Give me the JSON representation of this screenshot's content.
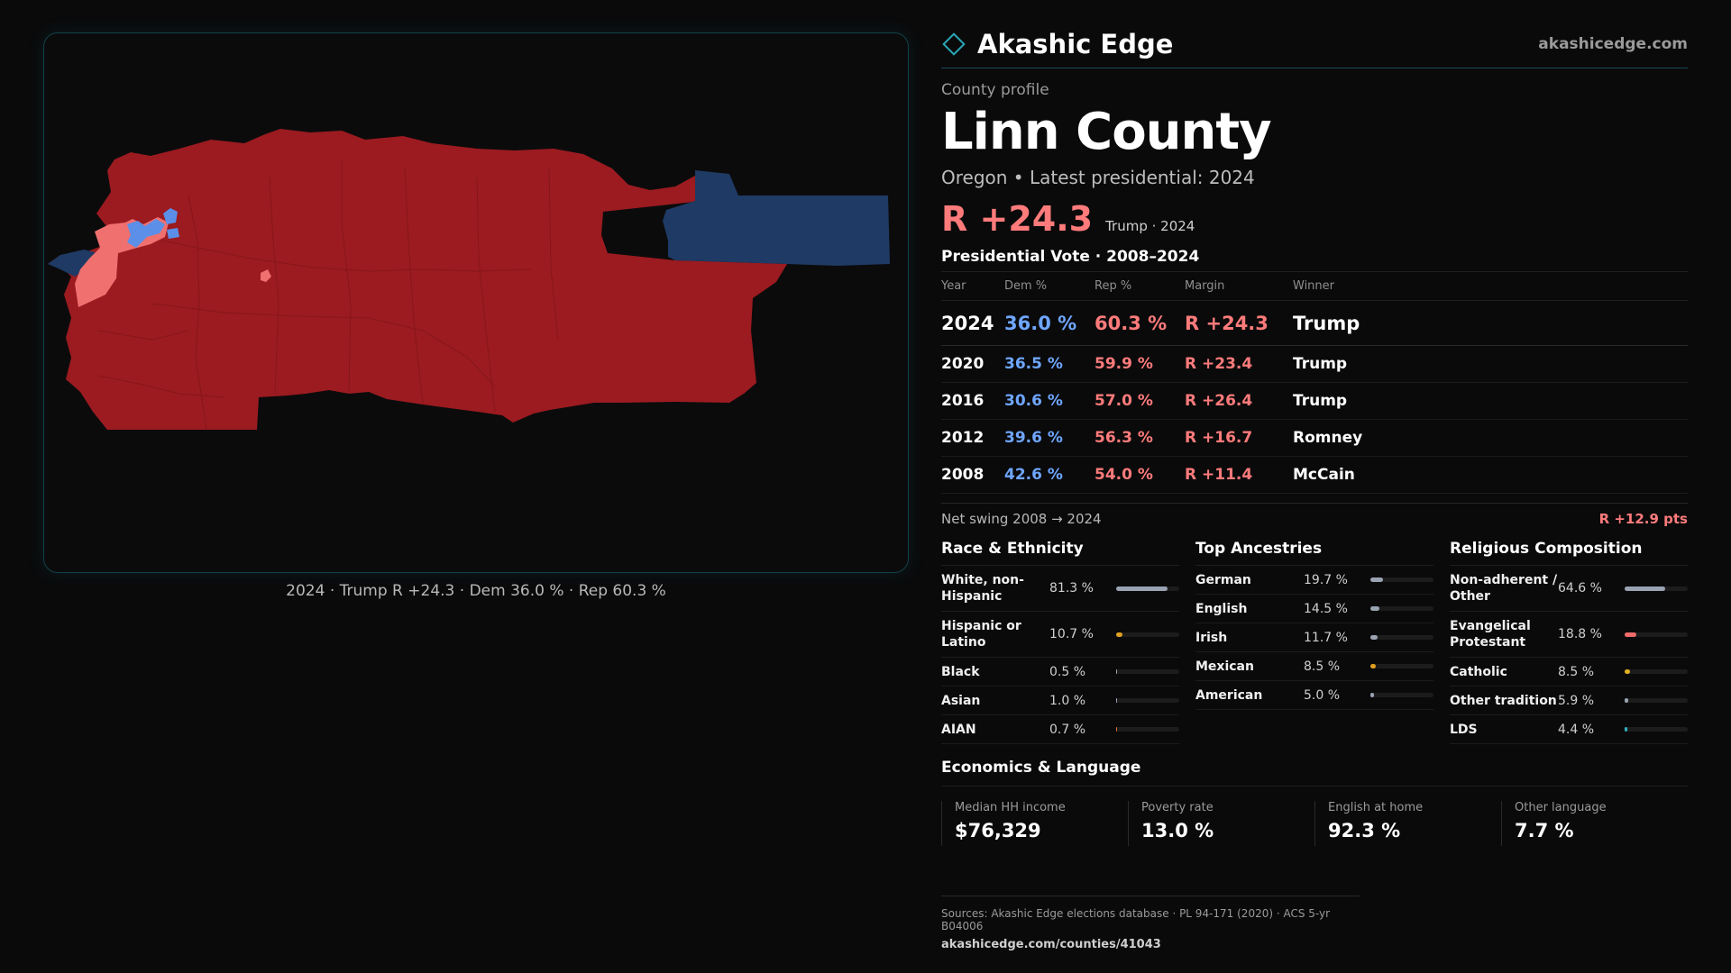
{
  "brand": {
    "name": "Akashic Edge",
    "url": "akashicedge.com"
  },
  "profile": {
    "eyebrow": "County profile",
    "county": "Linn County",
    "subline": "Oregon • Latest presidential: 2024",
    "headline_margin": "R +24.3",
    "headline_note": "Trump · 2024"
  },
  "map": {
    "caption": "2024 · Trump R +24.3 · Dem 36.0 % · Rep 60.3 %",
    "colors": {
      "rep_strong": "#9b1b20",
      "rep_lean": "#f07070",
      "dem_strong": "#1f3a64",
      "dem_lean": "#5b8fe8"
    }
  },
  "votes": {
    "title": "Presidential Vote · 2008–2024",
    "headers": {
      "year": "Year",
      "dem": "Dem %",
      "rep": "Rep %",
      "margin": "Margin",
      "winner": "Winner"
    },
    "rows": [
      {
        "year": "2024",
        "dem": "36.0 %",
        "rep": "60.3 %",
        "margin": "R +24.3",
        "winner": "Trump"
      },
      {
        "year": "2020",
        "dem": "36.5 %",
        "rep": "59.9 %",
        "margin": "R +23.4",
        "winner": "Trump"
      },
      {
        "year": "2016",
        "dem": "30.6 %",
        "rep": "57.0 %",
        "margin": "R +26.4",
        "winner": "Trump"
      },
      {
        "year": "2012",
        "dem": "39.6 %",
        "rep": "56.3 %",
        "margin": "R +16.7",
        "winner": "Romney"
      },
      {
        "year": "2008",
        "dem": "42.6 %",
        "rep": "54.0 %",
        "margin": "R +11.4",
        "winner": "McCain"
      }
    ],
    "swing_label": "Net swing 2008 → 2024",
    "swing_value": "R +12.9 pts"
  },
  "race": {
    "title": "Race & Ethnicity",
    "items": [
      {
        "label": "White, non-Hispanic",
        "value": "81.3 %",
        "fraction": 0.813,
        "color": "#9aa3b2"
      },
      {
        "label": "Hispanic or Latino",
        "value": "10.7 %",
        "fraction": 0.107,
        "color": "#e0a020"
      },
      {
        "label": "Black",
        "value": "0.5 %",
        "fraction": 0.005,
        "color": "#9aa3b2"
      },
      {
        "label": "Asian",
        "value": "1.0 %",
        "fraction": 0.01,
        "color": "#9aa3b2"
      },
      {
        "label": "AIAN",
        "value": "0.7 %",
        "fraction": 0.007,
        "color": "#d07030"
      }
    ]
  },
  "ancestry": {
    "title": "Top Ancestries",
    "items": [
      {
        "label": "German",
        "value": "19.7 %",
        "fraction": 0.197,
        "color": "#9aa3b2"
      },
      {
        "label": "English",
        "value": "14.5 %",
        "fraction": 0.145,
        "color": "#9aa3b2"
      },
      {
        "label": "Irish",
        "value": "11.7 %",
        "fraction": 0.117,
        "color": "#9aa3b2"
      },
      {
        "label": "Mexican",
        "value": "8.5 %",
        "fraction": 0.085,
        "color": "#e0a020"
      },
      {
        "label": "American",
        "value": "5.0 %",
        "fraction": 0.05,
        "color": "#9aa3b2"
      }
    ]
  },
  "religion": {
    "title": "Religious Composition",
    "items": [
      {
        "label": "Non-adherent / Other",
        "value": "64.6 %",
        "fraction": 0.646,
        "color": "#9aa3b2"
      },
      {
        "label": "Evangelical Protestant",
        "value": "18.8 %",
        "fraction": 0.188,
        "color": "#f06a6a"
      },
      {
        "label": "Catholic",
        "value": "8.5 %",
        "fraction": 0.085,
        "color": "#e0b020"
      },
      {
        "label": "Other tradition",
        "value": "5.9 %",
        "fraction": 0.059,
        "color": "#9aa3b2"
      },
      {
        "label": "LDS",
        "value": "4.4 %",
        "fraction": 0.044,
        "color": "#30b0c0"
      }
    ]
  },
  "economics": {
    "title": "Economics & Language",
    "cells": [
      {
        "label": "Median HH income",
        "value": "$76,329"
      },
      {
        "label": "Poverty rate",
        "value": "13.0 %"
      },
      {
        "label": "English at home",
        "value": "92.3 %"
      },
      {
        "label": "Other language",
        "value": "7.7 %"
      }
    ]
  },
  "footer": {
    "sources": "Sources: Akashic Edge elections database · PL 94-171 (2020) · ACS 5-yr B04006",
    "url": "akashicedge.com/counties/41043"
  }
}
